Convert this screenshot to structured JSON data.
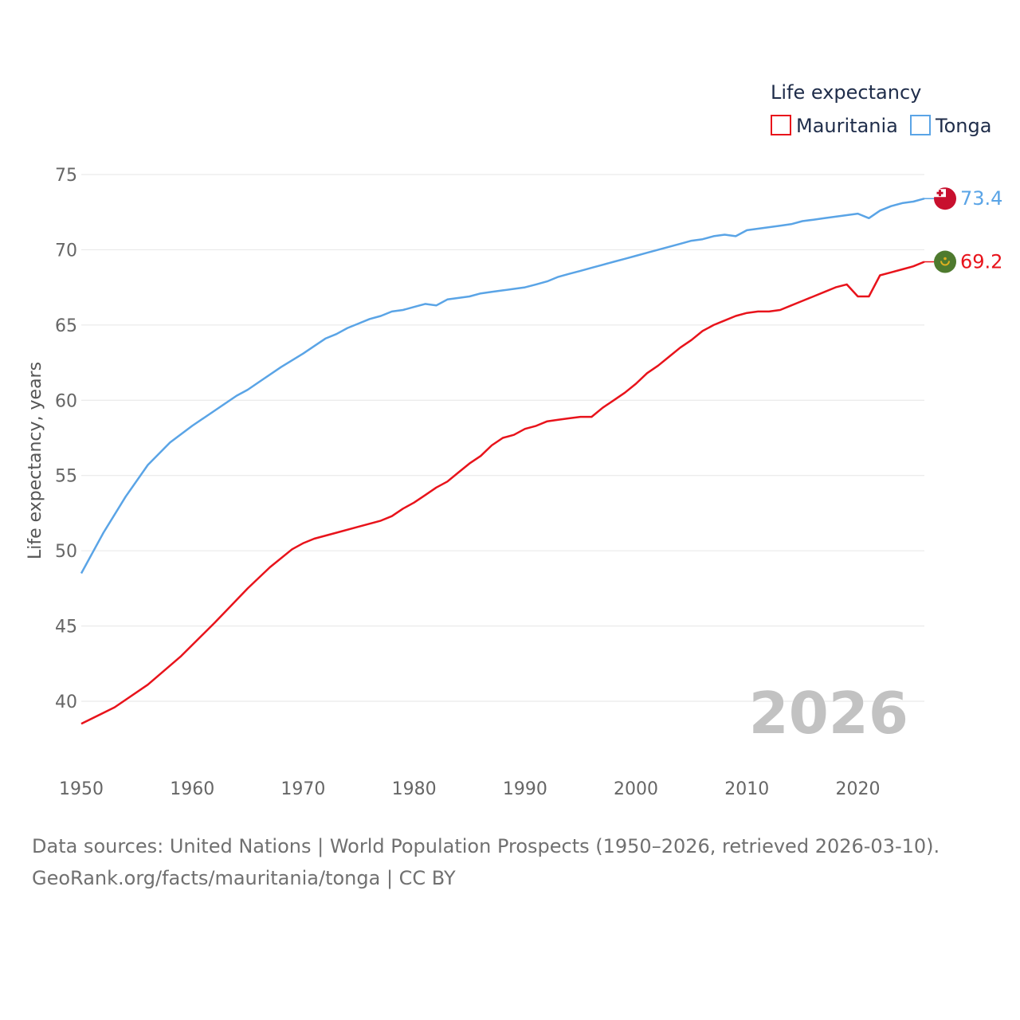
{
  "chart_data": {
    "type": "line",
    "title": "",
    "xlabel": "",
    "ylabel": "Life expectancy, years",
    "xlim": [
      1950,
      2026
    ],
    "ylim": [
      36,
      77
    ],
    "x_ticks": [
      1950,
      1960,
      1970,
      1980,
      1990,
      2000,
      2010,
      2020
    ],
    "y_ticks": [
      40,
      45,
      50,
      55,
      60,
      65,
      70,
      75
    ],
    "grid": true,
    "legend": {
      "title": "Life expectancy",
      "position": "top-right"
    },
    "year_label": "2026",
    "series": [
      {
        "name": "Mauritania",
        "color": "#e8131b",
        "end_label": "69.2",
        "flag": "mauritania-flag",
        "x": [
          1950,
          1953,
          1956,
          1959,
          1962,
          1965,
          1967,
          1969,
          1970,
          1971,
          1973,
          1975,
          1977,
          1978,
          1979,
          1980,
          1981,
          1982,
          1983,
          1984,
          1985,
          1986,
          1987,
          1988,
          1989,
          1990,
          1991,
          1992,
          1993,
          1994,
          1995,
          1996,
          1997,
          1998,
          1999,
          2000,
          2001,
          2002,
          2003,
          2004,
          2005,
          2006,
          2007,
          2008,
          2009,
          2010,
          2011,
          2012,
          2013,
          2014,
          2015,
          2016,
          2017,
          2018,
          2019,
          2020,
          2021,
          2022,
          2023,
          2024,
          2025,
          2026
        ],
        "values": [
          38.5,
          39.6,
          41.1,
          43.0,
          45.2,
          47.5,
          48.9,
          50.1,
          50.5,
          50.8,
          51.2,
          51.6,
          52.0,
          52.3,
          52.8,
          53.2,
          53.7,
          54.2,
          54.6,
          55.2,
          55.8,
          56.3,
          57.0,
          57.5,
          57.7,
          58.1,
          58.3,
          58.6,
          58.7,
          58.8,
          58.9,
          58.9,
          59.5,
          60.0,
          60.5,
          61.1,
          61.8,
          62.3,
          62.9,
          63.5,
          64.0,
          64.6,
          65.0,
          65.3,
          65.6,
          65.8,
          65.9,
          65.9,
          66.0,
          66.3,
          66.6,
          66.9,
          67.2,
          67.5,
          67.7,
          66.9,
          66.9,
          68.3,
          68.5,
          68.7,
          68.9,
          69.2
        ]
      },
      {
        "name": "Tonga",
        "color": "#5aa4e6",
        "end_label": "73.4",
        "flag": "tonga-flag",
        "x": [
          1950,
          1952,
          1954,
          1956,
          1958,
          1960,
          1962,
          1964,
          1965,
          1966,
          1968,
          1970,
          1971,
          1972,
          1973,
          1974,
          1975,
          1976,
          1977,
          1978,
          1979,
          1980,
          1981,
          1982,
          1983,
          1984,
          1985,
          1986,
          1987,
          1988,
          1989,
          1990,
          1991,
          1992,
          1993,
          1994,
          1995,
          1996,
          1997,
          1998,
          1999,
          2000,
          2001,
          2002,
          2003,
          2004,
          2005,
          2006,
          2007,
          2008,
          2009,
          2010,
          2011,
          2012,
          2013,
          2014,
          2015,
          2016,
          2017,
          2018,
          2019,
          2020,
          2021,
          2022,
          2023,
          2024,
          2025,
          2026
        ],
        "values": [
          48.5,
          51.2,
          53.6,
          55.7,
          57.2,
          58.3,
          59.3,
          60.3,
          60.7,
          61.2,
          62.2,
          63.1,
          63.6,
          64.1,
          64.4,
          64.8,
          65.1,
          65.4,
          65.6,
          65.9,
          66.0,
          66.2,
          66.4,
          66.3,
          66.7,
          66.8,
          66.9,
          67.1,
          67.2,
          67.3,
          67.4,
          67.5,
          67.7,
          67.9,
          68.2,
          68.4,
          68.6,
          68.8,
          69.0,
          69.2,
          69.4,
          69.6,
          69.8,
          70.0,
          70.2,
          70.4,
          70.6,
          70.7,
          70.9,
          71.0,
          70.9,
          71.3,
          71.4,
          71.5,
          71.6,
          71.7,
          71.9,
          72.0,
          72.1,
          72.2,
          72.3,
          72.4,
          72.1,
          72.6,
          72.9,
          73.1,
          73.2,
          73.4
        ]
      }
    ]
  },
  "footer": {
    "line1": "Data sources: United Nations | World Population Prospects (1950–2026, retrieved 2026-03-10).",
    "line2": "GeoRank.org/facts/mauritania/tonga | CC BY"
  }
}
